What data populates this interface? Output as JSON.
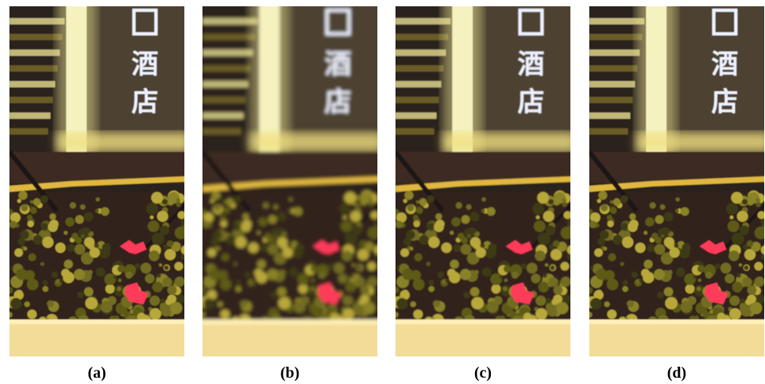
{
  "panels": [
    {
      "label": "(a)",
      "sign": [
        "酒",
        "店"
      ]
    },
    {
      "label": "(b)",
      "sign": [
        "酒",
        "店"
      ]
    },
    {
      "label": "(c)",
      "sign": [
        "酒",
        "店"
      ]
    },
    {
      "label": "(d)",
      "sign": [
        "酒",
        "店"
      ]
    }
  ]
}
